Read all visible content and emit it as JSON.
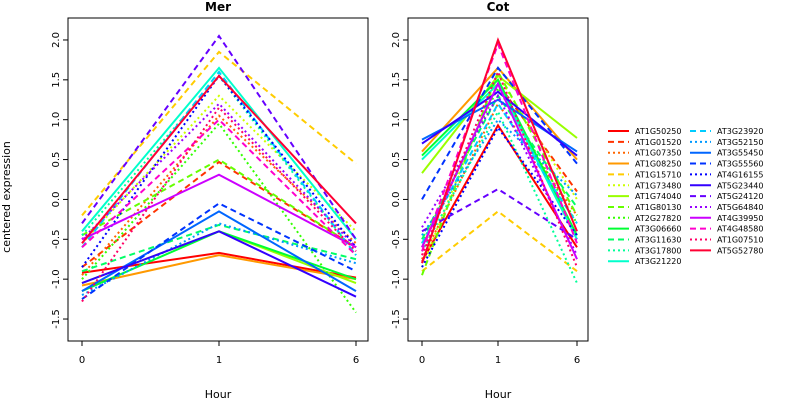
{
  "chart_data": [
    {
      "type": "line",
      "title": "Mer",
      "xlabel": "Hour",
      "ylabel": "centered expression",
      "x": [
        "0",
        "1",
        "6"
      ],
      "yticks": [
        "-1.5",
        "-1.0",
        "-0.5",
        "0.0",
        "0.5",
        "1.0",
        "1.5",
        "2.0"
      ],
      "ylim": [
        -1.6,
        2.1
      ],
      "series": [
        {
          "name": "AT1G50250",
          "values": [
            -0.92,
            -0.67,
            -0.98
          ]
        },
        {
          "name": "AT1G01520",
          "values": [
            -0.85,
            0.47,
            -0.6
          ]
        },
        {
          "name": "AT1G07350",
          "values": [
            -0.95,
            1.05,
            -0.55
          ]
        },
        {
          "name": "AT1G08250",
          "values": [
            -1.08,
            -0.7,
            -1.0
          ]
        },
        {
          "name": "AT1G15710",
          "values": [
            -0.2,
            1.85,
            0.45
          ]
        },
        {
          "name": "AT1G73480",
          "values": [
            -0.55,
            1.3,
            -0.4
          ]
        },
        {
          "name": "AT1G74040",
          "values": [
            -1.05,
            -0.4,
            -1.05
          ]
        },
        {
          "name": "AT1G80130",
          "values": [
            -0.45,
            0.5,
            -0.6
          ]
        },
        {
          "name": "AT2G27820",
          "values": [
            -1.0,
            0.95,
            -1.42
          ]
        },
        {
          "name": "AT3G06660",
          "values": [
            -1.15,
            -0.4,
            -1.0
          ]
        },
        {
          "name": "AT3G11630",
          "values": [
            -0.9,
            -0.32,
            -0.75
          ]
        },
        {
          "name": "AT3G17800",
          "values": [
            -0.45,
            1.55,
            -0.7
          ]
        },
        {
          "name": "AT3G21220",
          "values": [
            -0.4,
            1.65,
            -0.5
          ]
        },
        {
          "name": "AT3G23920",
          "values": [
            -0.6,
            1.6,
            -0.7
          ]
        },
        {
          "name": "AT3G52150",
          "values": [
            -1.2,
            -0.3,
            -0.8
          ]
        },
        {
          "name": "AT3G55450",
          "values": [
            -1.15,
            -0.15,
            -1.15
          ]
        },
        {
          "name": "AT3G55560",
          "values": [
            -1.25,
            -0.05,
            -0.9
          ]
        },
        {
          "name": "AT4G16155",
          "values": [
            -0.85,
            1.55,
            -0.6
          ]
        },
        {
          "name": "AT5G23440",
          "values": [
            -1.05,
            -0.4,
            -1.22
          ]
        },
        {
          "name": "AT5G24120",
          "values": [
            -0.3,
            2.05,
            -0.5
          ]
        },
        {
          "name": "AT5G64840",
          "values": [
            -0.5,
            1.2,
            -0.6
          ]
        },
        {
          "name": "AT4G39950",
          "values": [
            -0.5,
            0.31,
            -0.6
          ]
        },
        {
          "name": "AT4G48580",
          "values": [
            -0.6,
            1.0,
            -0.7
          ]
        },
        {
          "name": "AT1G07510",
          "values": [
            -1.28,
            1.15,
            -0.65
          ]
        },
        {
          "name": "AT5G52780",
          "values": [
            -0.55,
            1.55,
            -0.3
          ]
        }
      ]
    },
    {
      "type": "line",
      "title": "Cot",
      "xlabel": "Hour",
      "ylabel": "",
      "x": [
        "0",
        "1",
        "6"
      ],
      "yticks": [
        "-1.5",
        "-1.0",
        "-0.5",
        "0.0",
        "0.5",
        "1.0",
        "1.5",
        "2.0"
      ],
      "ylim": [
        -1.6,
        2.1
      ],
      "series": [
        {
          "name": "AT1G50250",
          "values": [
            -0.78,
            0.93,
            -0.6
          ]
        },
        {
          "name": "AT1G01520",
          "values": [
            -0.6,
            1.45,
            0.1
          ]
        },
        {
          "name": "AT1G07350",
          "values": [
            -0.75,
            1.2,
            -0.2
          ]
        },
        {
          "name": "AT1G08250",
          "values": [
            0.6,
            1.65,
            0.5
          ]
        },
        {
          "name": "AT1G15710",
          "values": [
            -0.9,
            -0.15,
            -0.9
          ]
        },
        {
          "name": "AT1G73480",
          "values": [
            -0.85,
            1.55,
            0.0
          ]
        },
        {
          "name": "AT1G74040",
          "values": [
            0.33,
            1.55,
            0.77
          ]
        },
        {
          "name": "AT1G80130",
          "values": [
            -0.95,
            1.6,
            -0.2
          ]
        },
        {
          "name": "AT2G27820",
          "values": [
            -0.55,
            1.4,
            -0.3
          ]
        },
        {
          "name": "AT3G06660",
          "values": [
            0.55,
            1.5,
            -0.45
          ]
        },
        {
          "name": "AT3G11630",
          "values": [
            -0.5,
            1.3,
            -0.1
          ]
        },
        {
          "name": "AT3G17800",
          "values": [
            -0.65,
            1.1,
            -1.05
          ]
        },
        {
          "name": "AT3G21220",
          "values": [
            0.5,
            1.45,
            -0.5
          ]
        },
        {
          "name": "AT3G23920",
          "values": [
            -0.55,
            1.2,
            -0.3
          ]
        },
        {
          "name": "AT3G52150",
          "values": [
            -0.45,
            1.0,
            0.05
          ]
        },
        {
          "name": "AT3G55450",
          "values": [
            0.75,
            1.25,
            0.6
          ]
        },
        {
          "name": "AT3G55560",
          "values": [
            0.0,
            1.65,
            0.45
          ]
        },
        {
          "name": "AT4G16155",
          "values": [
            -0.85,
            0.9,
            -0.45
          ]
        },
        {
          "name": "AT5G23440",
          "values": [
            0.7,
            1.35,
            0.55
          ]
        },
        {
          "name": "AT5G24120",
          "values": [
            -0.4,
            0.13,
            -0.5
          ]
        },
        {
          "name": "AT5G64840",
          "values": [
            -0.35,
            1.3,
            -0.7
          ]
        },
        {
          "name": "AT4G39950",
          "values": [
            -0.6,
            1.45,
            -0.75
          ]
        },
        {
          "name": "AT4G48580",
          "values": [
            -0.65,
            1.95,
            -0.55
          ]
        },
        {
          "name": "AT1G07510",
          "values": [
            -0.7,
            1.6,
            -0.85
          ]
        },
        {
          "name": "AT5G52780",
          "values": [
            -0.8,
            2.0,
            -0.4
          ]
        }
      ]
    }
  ],
  "legend": {
    "placement": "right",
    "entries": [
      {
        "name": "AT1G50250",
        "color": "#ff0000",
        "dash": "solid"
      },
      {
        "name": "AT1G01520",
        "color": "#ff3300",
        "dash": "dashed"
      },
      {
        "name": "AT1G07350",
        "color": "#ff6600",
        "dash": "dotted"
      },
      {
        "name": "AT1G08250",
        "color": "#ff9900",
        "dash": "solid"
      },
      {
        "name": "AT1G15710",
        "color": "#ffcc00",
        "dash": "dashed"
      },
      {
        "name": "AT1G73480",
        "color": "#ccff00",
        "dash": "dotted"
      },
      {
        "name": "AT1G74040",
        "color": "#99ff00",
        "dash": "solid"
      },
      {
        "name": "AT1G80130",
        "color": "#66ff00",
        "dash": "dashed"
      },
      {
        "name": "AT2G27820",
        "color": "#33ff00",
        "dash": "dotted"
      },
      {
        "name": "AT3G06660",
        "color": "#00ff33",
        "dash": "solid"
      },
      {
        "name": "AT3G11630",
        "color": "#00ff66",
        "dash": "dashed"
      },
      {
        "name": "AT3G17800",
        "color": "#00ff99",
        "dash": "dotted"
      },
      {
        "name": "AT3G21220",
        "color": "#00ffcc",
        "dash": "solid"
      },
      {
        "name": "AT3G23920",
        "color": "#00ccff",
        "dash": "dashed"
      },
      {
        "name": "AT3G52150",
        "color": "#0099ff",
        "dash": "dotted"
      },
      {
        "name": "AT3G55450",
        "color": "#0066ff",
        "dash": "solid"
      },
      {
        "name": "AT3G55560",
        "color": "#0033ff",
        "dash": "dashed"
      },
      {
        "name": "AT4G16155",
        "color": "#0000ff",
        "dash": "dotted"
      },
      {
        "name": "AT5G23440",
        "color": "#3300ff",
        "dash": "solid"
      },
      {
        "name": "AT5G24120",
        "color": "#6600ff",
        "dash": "dashed"
      },
      {
        "name": "AT5G64840",
        "color": "#9900ff",
        "dash": "dotted"
      },
      {
        "name": "AT4G39950",
        "color": "#cc00ff",
        "dash": "solid"
      },
      {
        "name": "AT4G48580",
        "color": "#ff00cc",
        "dash": "dashed"
      },
      {
        "name": "AT1G07510",
        "color": "#ff0066",
        "dash": "dotted"
      },
      {
        "name": "AT5G52780",
        "color": "#ff0033",
        "dash": "solid"
      }
    ]
  }
}
